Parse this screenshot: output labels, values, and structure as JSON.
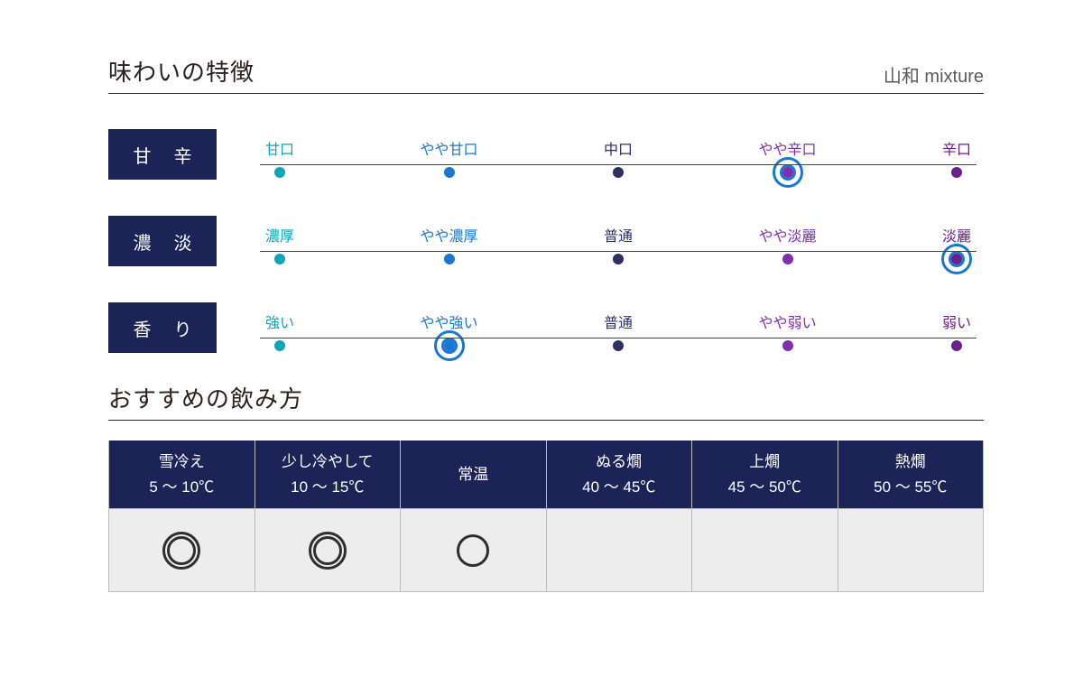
{
  "palette": {
    "navy": "#1c2356",
    "scale_colors": [
      "#0aa6b8",
      "#1877d2",
      "#2d2f66",
      "#7e2fb0",
      "#6b1f8f"
    ],
    "ring": "#1877d2"
  },
  "header": {
    "section_title": "味わいの特徴",
    "product_name": "山和 mixture"
  },
  "scales": [
    {
      "tag": "甘 辛",
      "labels": [
        "甘口",
        "やや甘口",
        "中口",
        "やや辛口",
        "辛口"
      ],
      "selected_index": 3
    },
    {
      "tag": "濃 淡",
      "labels": [
        "濃厚",
        "やや濃厚",
        "普通",
        "やや淡麗",
        "淡麗"
      ],
      "selected_index": 4
    },
    {
      "tag": "香 り",
      "labels": [
        "強い",
        "やや強い",
        "普通",
        "やや弱い",
        "弱い"
      ],
      "selected_index": 1
    }
  ],
  "serving": {
    "section_title": "おすすめの飲み方",
    "columns": [
      {
        "name": "雪冷え",
        "temp": "5 〜 10℃",
        "mark": "double"
      },
      {
        "name": "少し冷やして",
        "temp": "10 〜 15℃",
        "mark": "double"
      },
      {
        "name": "常温",
        "temp": "",
        "mark": "single"
      },
      {
        "name": "ぬる燗",
        "temp": "40 〜 45℃",
        "mark": ""
      },
      {
        "name": "上燗",
        "temp": "45 〜 50℃",
        "mark": ""
      },
      {
        "name": "熱燗",
        "temp": "50 〜 55℃",
        "mark": ""
      }
    ]
  }
}
